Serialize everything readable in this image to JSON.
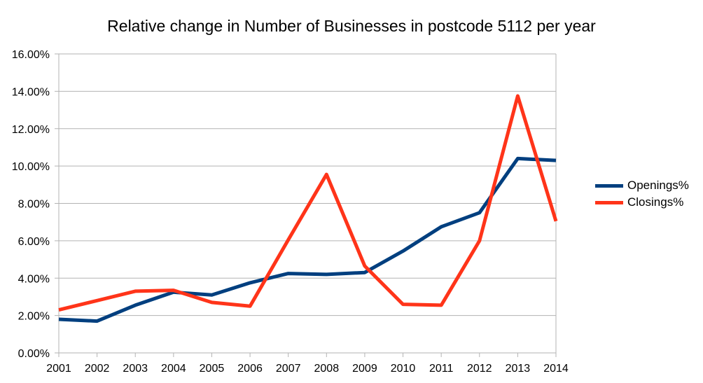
{
  "chart_data": {
    "type": "line",
    "title": "Relative change in Number of Businesses in postcode 5112 per year",
    "x": [
      "2001",
      "2002",
      "2003",
      "2004",
      "2005",
      "2006",
      "2007",
      "2008",
      "2009",
      "2010",
      "2011",
      "2012",
      "2013",
      "2014"
    ],
    "y_ticks": [
      "0.00%",
      "2.00%",
      "4.00%",
      "6.00%",
      "8.00%",
      "10.00%",
      "12.00%",
      "14.00%",
      "16.00%"
    ],
    "ylim": [
      0,
      16
    ],
    "grid": true,
    "legend_position": "right",
    "series": [
      {
        "name": "Openings%",
        "color": "#003f7f",
        "values": [
          1.8,
          1.7,
          2.55,
          3.25,
          3.1,
          3.75,
          4.25,
          4.2,
          4.3,
          5.45,
          6.75,
          7.5,
          10.4,
          10.3
        ]
      },
      {
        "name": "Closings%",
        "color": "#ff3419",
        "values": [
          2.3,
          2.8,
          3.3,
          3.35,
          2.7,
          2.5,
          6.05,
          9.55,
          4.65,
          2.6,
          2.55,
          6.0,
          13.75,
          7.05
        ]
      }
    ]
  }
}
